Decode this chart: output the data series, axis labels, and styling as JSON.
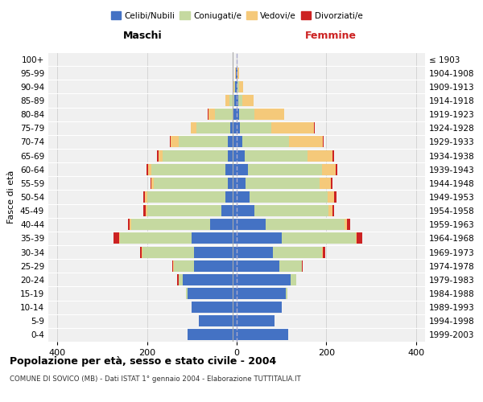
{
  "age_groups": [
    "0-4",
    "5-9",
    "10-14",
    "15-19",
    "20-24",
    "25-29",
    "30-34",
    "35-39",
    "40-44",
    "45-49",
    "50-54",
    "55-59",
    "60-64",
    "65-69",
    "70-74",
    "75-79",
    "80-84",
    "85-89",
    "90-94",
    "95-99",
    "100+"
  ],
  "birth_years": [
    "1999-2003",
    "1994-1998",
    "1989-1993",
    "1984-1988",
    "1979-1983",
    "1974-1978",
    "1969-1973",
    "1964-1968",
    "1959-1963",
    "1954-1958",
    "1949-1953",
    "1944-1948",
    "1939-1943",
    "1934-1938",
    "1929-1933",
    "1924-1928",
    "1919-1923",
    "1914-1918",
    "1909-1913",
    "1904-1908",
    "≤ 1903"
  ],
  "maschi": {
    "celibi": [
      110,
      85,
      100,
      110,
      120,
      95,
      95,
      100,
      60,
      35,
      25,
      20,
      25,
      20,
      20,
      15,
      8,
      5,
      3,
      1,
      0
    ],
    "coniugati": [
      0,
      0,
      1,
      3,
      10,
      45,
      115,
      160,
      175,
      165,
      175,
      165,
      165,
      145,
      110,
      75,
      40,
      12,
      3,
      1,
      0
    ],
    "vedovi": [
      0,
      0,
      0,
      0,
      0,
      1,
      1,
      2,
      3,
      3,
      5,
      5,
      8,
      10,
      18,
      12,
      15,
      8,
      3,
      1,
      0
    ],
    "divorziati": [
      0,
      0,
      0,
      0,
      2,
      3,
      5,
      12,
      5,
      5,
      3,
      2,
      3,
      2,
      1,
      1,
      1,
      0,
      0,
      0,
      0
    ]
  },
  "femmine": {
    "nubili": [
      115,
      85,
      100,
      110,
      120,
      95,
      80,
      100,
      65,
      40,
      28,
      20,
      25,
      18,
      12,
      8,
      5,
      3,
      2,
      1,
      0
    ],
    "coniugate": [
      0,
      0,
      1,
      3,
      12,
      50,
      110,
      165,
      175,
      165,
      175,
      165,
      165,
      140,
      105,
      70,
      35,
      10,
      4,
      1,
      0
    ],
    "vedove": [
      0,
      0,
      0,
      0,
      0,
      1,
      2,
      3,
      5,
      8,
      15,
      25,
      30,
      55,
      75,
      95,
      65,
      25,
      8,
      3,
      0
    ],
    "divorziate": [
      0,
      0,
      0,
      0,
      1,
      2,
      6,
      12,
      8,
      5,
      5,
      3,
      5,
      5,
      2,
      1,
      1,
      0,
      0,
      0,
      0
    ]
  },
  "colors": {
    "celibi_nubili": "#4472c4",
    "coniugati": "#c5d9a0",
    "vedovi": "#f5c97a",
    "divorziati": "#cc2222"
  },
  "title": "Popolazione per età, sesso e stato civile - 2004",
  "subtitle": "COMUNE DI SOVICO (MB) - Dati ISTAT 1° gennaio 2004 - Elaborazione TUTTITALIA.IT",
  "xlabel_left": "Maschi",
  "xlabel_right": "Femmine",
  "ylabel_left": "Fasce di età",
  "xlim": 420,
  "legend_labels": [
    "Celibi/Nubili",
    "Coniugati/e",
    "Vedovi/e",
    "Divorziati/e"
  ],
  "bg_color": "#ffffff",
  "plot_bg_color": "#f0f0f0",
  "grid_color": "#d0d0d0"
}
